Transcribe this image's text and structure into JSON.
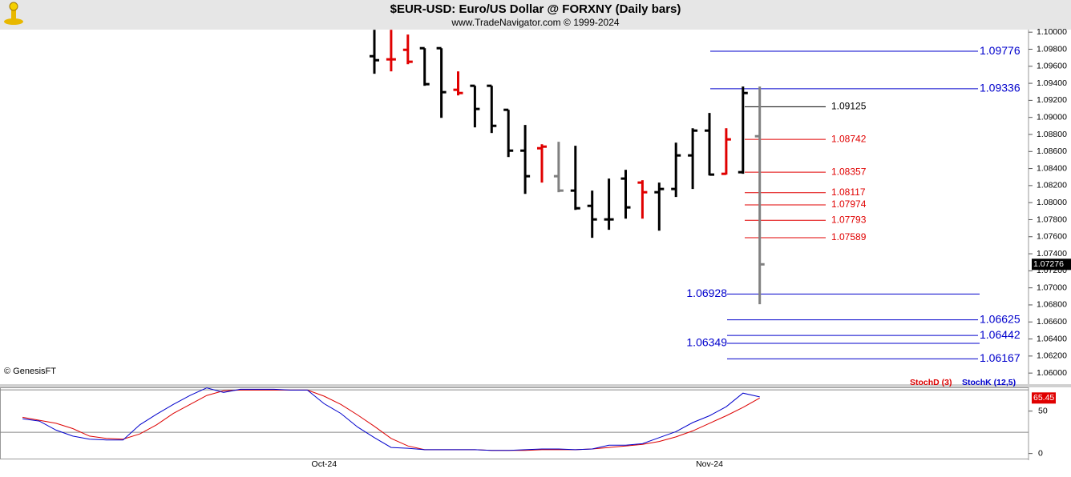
{
  "chart_data": [
    {
      "type": "ohlc",
      "title": "$EUR-USD:  Euro/US Dollar @ FORXNY  (Daily bars)",
      "subtitle": "www.TradeNavigator.com © 1999-2024",
      "source_note": "© GenesisFT",
      "categories": [
        null,
        null,
        null,
        null,
        null,
        null,
        null,
        null,
        null,
        null,
        null,
        null,
        null,
        null,
        null,
        null,
        null,
        null,
        null,
        "Oct-24",
        null,
        null,
        null,
        null,
        null,
        null,
        null,
        null,
        null,
        null,
        null,
        null,
        null,
        null,
        null,
        null,
        null,
        null,
        null,
        null,
        null,
        null,
        "Nov-24",
        null,
        null,
        null
      ],
      "open": [
        null,
        null,
        null,
        null,
        null,
        null,
        null,
        null,
        null,
        null,
        null,
        null,
        null,
        null,
        null,
        null,
        null,
        null,
        null,
        null,
        null,
        null,
        1.09718,
        1.09681,
        1.09793,
        1.09812,
        1.09812,
        1.09324,
        1.09371,
        1.09371,
        1.09089,
        1.0861,
        1.08638,
        1.0831,
        1.08141,
        1.07962,
        1.07803,
        1.08282,
        1.08235,
        1.08122,
        1.0816,
        1.08554,
        1.08845,
        1.08338,
        1.08357,
        1.08779
      ],
      "high": [
        null,
        null,
        null,
        null,
        null,
        null,
        null,
        null,
        null,
        null,
        null,
        null,
        null,
        null,
        null,
        null,
        null,
        null,
        null,
        null,
        null,
        null,
        1.10028,
        1.10028,
        1.09972,
        1.09812,
        1.09812,
        1.0954,
        1.09371,
        1.09371,
        1.09089,
        1.08911,
        1.08685,
        1.08714,
        1.08667,
        1.08141,
        1.08282,
        1.08385,
        1.08263,
        1.08235,
        1.08704,
        1.08873,
        1.09052,
        1.08873,
        1.09362,
        1.09362
      ],
      "low": [
        null,
        null,
        null,
        null,
        null,
        null,
        null,
        null,
        null,
        null,
        null,
        null,
        null,
        null,
        null,
        null,
        null,
        null,
        null,
        null,
        null,
        null,
        1.09512,
        1.0954,
        1.09624,
        1.09371,
        1.08995,
        1.09258,
        1.08883,
        1.08817,
        1.08535,
        1.08103,
        1.08235,
        1.08122,
        1.07915,
        1.07587,
        1.07681,
        1.07812,
        1.07812,
        1.07671,
        1.08066,
        1.0816,
        1.08319,
        1.08329,
        1.08338,
        1.06808
      ],
      "close": [
        null,
        null,
        null,
        null,
        null,
        null,
        null,
        null,
        null,
        null,
        null,
        null,
        null,
        null,
        null,
        null,
        null,
        null,
        null,
        null,
        null,
        null,
        1.09671,
        1.09681,
        1.09653,
        1.0939,
        1.09296,
        1.09286,
        1.09099,
        1.08901,
        1.0861,
        1.0831,
        1.08657,
        1.08141,
        1.07934,
        1.07803,
        1.07803,
        1.07944,
        1.08122,
        1.0816,
        1.08554,
        1.08845,
        1.08329,
        1.08742,
        1.09286,
        1.07276
      ],
      "bar_colors": [
        null,
        null,
        null,
        null,
        null,
        null,
        null,
        null,
        null,
        null,
        null,
        null,
        null,
        null,
        null,
        null,
        null,
        null,
        null,
        null,
        null,
        null,
        "#000000",
        "#e00000",
        "#e00000",
        "#000000",
        "#000000",
        "#e00000",
        "#000000",
        "#000000",
        "#000000",
        "#000000",
        "#e00000",
        "#808080",
        "#000000",
        "#000000",
        "#000000",
        "#000000",
        "#e00000",
        "#000000",
        "#000000",
        "#000000",
        "#000000",
        "#e00000",
        "#000000",
        "#808080"
      ],
      "ylim": [
        1.0587,
        1.1003
      ],
      "yticks": [
        {
          "value": 1.1,
          "label": "1.10000"
        },
        {
          "value": 1.098,
          "label": "1.09800"
        },
        {
          "value": 1.096,
          "label": "1.09600"
        },
        {
          "value": 1.094,
          "label": "1.09400"
        },
        {
          "value": 1.092,
          "label": "1.09200"
        },
        {
          "value": 1.09,
          "label": "1.09000"
        },
        {
          "value": 1.088,
          "label": "1.08800"
        },
        {
          "value": 1.086,
          "label": "1.08600"
        },
        {
          "value": 1.084,
          "label": "1.08400"
        },
        {
          "value": 1.082,
          "label": "1.08200"
        },
        {
          "value": 1.08,
          "label": "1.08000"
        },
        {
          "value": 1.078,
          "label": "1.07800"
        },
        {
          "value": 1.076,
          "label": "1.07600"
        },
        {
          "value": 1.074,
          "label": "1.07400"
        },
        {
          "value": 1.072,
          "label": "1.07200"
        },
        {
          "value": 1.07,
          "label": "1.07000"
        },
        {
          "value": 1.068,
          "label": "1.06800"
        },
        {
          "value": 1.066,
          "label": "1.06600"
        },
        {
          "value": 1.064,
          "label": "1.06400"
        },
        {
          "value": 1.062,
          "label": "1.06200"
        },
        {
          "value": 1.06,
          "label": "1.06000"
        }
      ],
      "levels": [
        {
          "value": 1.09776,
          "color": "#0000cc",
          "style": "major",
          "label_side": "right"
        },
        {
          "value": 1.09336,
          "color": "#0000cc",
          "style": "major",
          "label_side": "right"
        },
        {
          "value": 1.09125,
          "color": "#000000",
          "style": "minor",
          "label_side": "right"
        },
        {
          "value": 1.08742,
          "color": "#e00000",
          "style": "minor",
          "label_side": "right"
        },
        {
          "value": 1.08357,
          "color": "#e00000",
          "style": "minor",
          "label_side": "right"
        },
        {
          "value": 1.08117,
          "color": "#e00000",
          "style": "minor",
          "label_side": "right"
        },
        {
          "value": 1.07974,
          "color": "#e00000",
          "style": "minor",
          "label_side": "right"
        },
        {
          "value": 1.07793,
          "color": "#e00000",
          "style": "minor",
          "label_side": "right"
        },
        {
          "value": 1.07589,
          "color": "#e00000",
          "style": "minor",
          "label_side": "right"
        },
        {
          "value": 1.06928,
          "color": "#0000cc",
          "style": "major",
          "label_side": "left"
        },
        {
          "value": 1.06625,
          "color": "#0000cc",
          "style": "major",
          "label_side": "right"
        },
        {
          "value": 1.06442,
          "color": "#0000cc",
          "style": "major",
          "label_side": "right"
        },
        {
          "value": 1.06349,
          "color": "#0000cc",
          "style": "major",
          "label_side": "left"
        },
        {
          "value": 1.06167,
          "color": "#0000cc",
          "style": "major",
          "label_side": "right"
        }
      ],
      "last_price": 1.07276
    },
    {
      "type": "line",
      "series": [
        {
          "name": "StochD (3)",
          "color": "#dd0000",
          "values": [
            null,
            42.7,
            39.2,
            35.6,
            29.4,
            20.5,
            17.8,
            16.9,
            23.1,
            33.8,
            47.2,
            57.9,
            68.5,
            73.9,
            74.8,
            74.8,
            74.8,
            74.8,
            74.8,
            67.6,
            57.9,
            45.4,
            32.0,
            17.8,
            8.9,
            4.5,
            4.5,
            4.5,
            4.5,
            3.6,
            3.6,
            3.6,
            4.5,
            4.5,
            4.5,
            5.3,
            7.1,
            8.9,
            10.7,
            14.2,
            19.6,
            26.7,
            35.6,
            44.5,
            54.3,
            65.45
          ]
        },
        {
          "name": "StochK (12,5)",
          "color": "#0000cc",
          "values": [
            null,
            40.9,
            38.3,
            27.6,
            20.5,
            16.9,
            16.0,
            16.0,
            33.8,
            46.3,
            57.9,
            68.5,
            77.4,
            72.1,
            75.7,
            75.7,
            75.7,
            74.8,
            74.8,
            58.7,
            47.2,
            31.2,
            18.7,
            7.1,
            6.2,
            4.5,
            4.5,
            4.5,
            4.5,
            3.6,
            3.6,
            4.5,
            5.3,
            5.3,
            4.5,
            5.3,
            9.8,
            9.8,
            11.6,
            18.7,
            25.8,
            36.5,
            44.5,
            55.2,
            71.2,
            66.8
          ]
        }
      ],
      "ylim": [
        -6,
        78
      ],
      "yticks": [
        0,
        50
      ],
      "hlines": [
        75,
        25
      ],
      "last_value": 65.45
    }
  ]
}
